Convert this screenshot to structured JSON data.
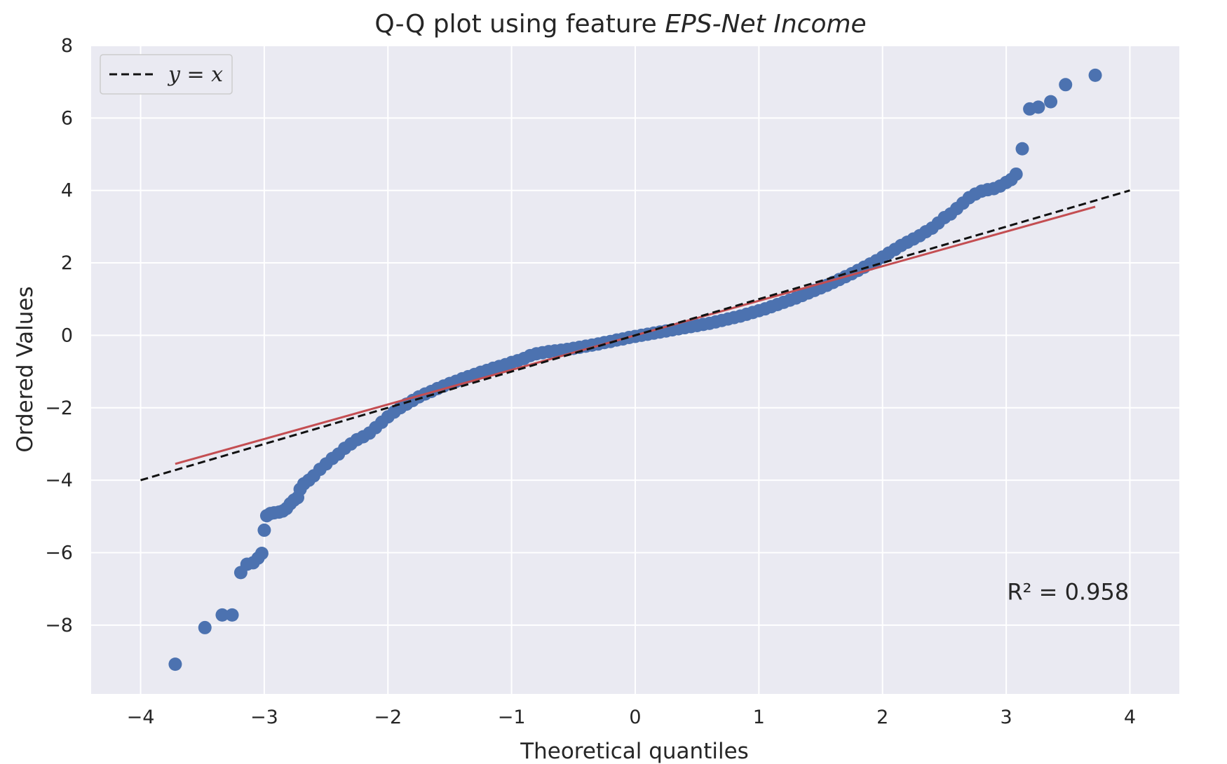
{
  "chart_data": {
    "type": "scatter",
    "title": "Q-Q plot using feature EPS-Net Income",
    "title_prefix": "Q-Q plot using feature ",
    "title_feature": "EPS-Net Income",
    "xlabel": "Theoretical quantiles",
    "ylabel": "Ordered Values",
    "xlim": [
      -4.4,
      4.4
    ],
    "ylim": [
      -9.9,
      8.0
    ],
    "xticks": [
      -4,
      -3,
      -2,
      -1,
      0,
      1,
      2,
      3,
      4
    ],
    "xtick_labels": [
      "−4",
      "−3",
      "−2",
      "−1",
      "0",
      "1",
      "2",
      "3",
      "4"
    ],
    "yticks": [
      -8,
      -6,
      -4,
      -2,
      0,
      2,
      4,
      6,
      8
    ],
    "ytick_labels": [
      "−8",
      "−6",
      "−4",
      "−2",
      "0",
      "2",
      "4",
      "6",
      "8"
    ],
    "grid": true,
    "legend": {
      "placement": "top-left",
      "entries": [
        {
          "label": "y = x",
          "style": "dashed",
          "color": "#111111"
        }
      ]
    },
    "annotation": {
      "text": "R² = 0.958",
      "x": 3.5,
      "y": -7.3
    },
    "colors": {
      "points": "#4c72b0",
      "fit_line": "#c44e52",
      "identity_line": "#111111",
      "plot_background": "#eaeaf2",
      "grid": "#ffffff"
    },
    "fit_line": {
      "x": [
        -3.72,
        3.72
      ],
      "y": [
        -3.55,
        3.55
      ]
    },
    "identity_line": {
      "x": [
        -4,
        4
      ],
      "y": [
        -4,
        4
      ]
    },
    "series": [
      {
        "values": [
          [
            -3.72,
            -9.08
          ],
          [
            -3.48,
            -8.07
          ],
          [
            -3.34,
            -7.72
          ],
          [
            -3.26,
            -7.72
          ],
          [
            -3.19,
            -6.55
          ],
          [
            -3.14,
            -6.32
          ],
          [
            -3.09,
            -6.28
          ],
          [
            -3.05,
            -6.15
          ],
          [
            -3.02,
            -6.02
          ],
          [
            -3.0,
            -5.38
          ],
          [
            -2.98,
            -4.98
          ],
          [
            -2.95,
            -4.92
          ],
          [
            -2.92,
            -4.9
          ],
          [
            -2.88,
            -4.88
          ],
          [
            -2.85,
            -4.85
          ],
          [
            -2.82,
            -4.78
          ],
          [
            -2.79,
            -4.65
          ],
          [
            -2.76,
            -4.55
          ],
          [
            -2.73,
            -4.48
          ],
          [
            -2.71,
            -4.25
          ],
          [
            -2.68,
            -4.1
          ],
          [
            -2.64,
            -4.0
          ],
          [
            -2.6,
            -3.88
          ],
          [
            -2.55,
            -3.7
          ],
          [
            -2.5,
            -3.55
          ],
          [
            -2.45,
            -3.4
          ],
          [
            -2.4,
            -3.28
          ],
          [
            -2.35,
            -3.12
          ],
          [
            -2.3,
            -3.0
          ],
          [
            -2.25,
            -2.88
          ],
          [
            -2.2,
            -2.8
          ],
          [
            -2.15,
            -2.7
          ],
          [
            -2.1,
            -2.55
          ],
          [
            -2.05,
            -2.4
          ],
          [
            -2.0,
            -2.25
          ],
          [
            -1.95,
            -2.12
          ],
          [
            -1.9,
            -2.0
          ],
          [
            -1.85,
            -1.9
          ],
          [
            -1.8,
            -1.8
          ],
          [
            -1.75,
            -1.7
          ],
          [
            -1.7,
            -1.62
          ],
          [
            -1.65,
            -1.55
          ],
          [
            -1.6,
            -1.47
          ],
          [
            -1.55,
            -1.4
          ],
          [
            -1.5,
            -1.33
          ],
          [
            -1.45,
            -1.27
          ],
          [
            -1.4,
            -1.2
          ],
          [
            -1.35,
            -1.14
          ],
          [
            -1.3,
            -1.08
          ],
          [
            -1.25,
            -1.02
          ],
          [
            -1.2,
            -0.97
          ],
          [
            -1.15,
            -0.91
          ],
          [
            -1.1,
            -0.86
          ],
          [
            -1.05,
            -0.81
          ],
          [
            -1.0,
            -0.75
          ],
          [
            -0.95,
            -0.7
          ],
          [
            -0.9,
            -0.64
          ],
          [
            -0.85,
            -0.56
          ],
          [
            -0.8,
            -0.51
          ],
          [
            -0.75,
            -0.48
          ],
          [
            -0.7,
            -0.45
          ],
          [
            -0.65,
            -0.43
          ],
          [
            -0.6,
            -0.41
          ],
          [
            -0.55,
            -0.39
          ],
          [
            -0.5,
            -0.36
          ],
          [
            -0.45,
            -0.33
          ],
          [
            -0.4,
            -0.3
          ],
          [
            -0.35,
            -0.27
          ],
          [
            -0.3,
            -0.24
          ],
          [
            -0.25,
            -0.2
          ],
          [
            -0.2,
            -0.17
          ],
          [
            -0.15,
            -0.13
          ],
          [
            -0.1,
            -0.1
          ],
          [
            -0.05,
            -0.06
          ],
          [
            0.0,
            -0.03
          ],
          [
            0.05,
            0.0
          ],
          [
            0.1,
            0.03
          ],
          [
            0.15,
            0.06
          ],
          [
            0.2,
            0.09
          ],
          [
            0.25,
            0.12
          ],
          [
            0.3,
            0.15
          ],
          [
            0.35,
            0.18
          ],
          [
            0.4,
            0.21
          ],
          [
            0.45,
            0.24
          ],
          [
            0.5,
            0.27
          ],
          [
            0.55,
            0.3
          ],
          [
            0.6,
            0.33
          ],
          [
            0.65,
            0.37
          ],
          [
            0.7,
            0.41
          ],
          [
            0.75,
            0.45
          ],
          [
            0.8,
            0.49
          ],
          [
            0.85,
            0.53
          ],
          [
            0.9,
            0.58
          ],
          [
            0.95,
            0.63
          ],
          [
            1.0,
            0.68
          ],
          [
            1.05,
            0.73
          ],
          [
            1.1,
            0.79
          ],
          [
            1.15,
            0.85
          ],
          [
            1.2,
            0.91
          ],
          [
            1.25,
            0.97
          ],
          [
            1.3,
            1.03
          ],
          [
            1.35,
            1.1
          ],
          [
            1.4,
            1.17
          ],
          [
            1.45,
            1.24
          ],
          [
            1.5,
            1.31
          ],
          [
            1.55,
            1.38
          ],
          [
            1.6,
            1.46
          ],
          [
            1.65,
            1.54
          ],
          [
            1.7,
            1.62
          ],
          [
            1.75,
            1.7
          ],
          [
            1.8,
            1.79
          ],
          [
            1.85,
            1.88
          ],
          [
            1.9,
            1.97
          ],
          [
            1.95,
            2.06
          ],
          [
            2.0,
            2.16
          ],
          [
            2.05,
            2.27
          ],
          [
            2.1,
            2.37
          ],
          [
            2.15,
            2.48
          ],
          [
            2.2,
            2.57
          ],
          [
            2.25,
            2.66
          ],
          [
            2.3,
            2.75
          ],
          [
            2.35,
            2.86
          ],
          [
            2.4,
            2.96
          ],
          [
            2.45,
            3.1
          ],
          [
            2.5,
            3.25
          ],
          [
            2.55,
            3.35
          ],
          [
            2.6,
            3.5
          ],
          [
            2.65,
            3.65
          ],
          [
            2.7,
            3.8
          ],
          [
            2.75,
            3.9
          ],
          [
            2.8,
            3.98
          ],
          [
            2.85,
            4.02
          ],
          [
            2.9,
            4.05
          ],
          [
            2.95,
            4.12
          ],
          [
            3.0,
            4.22
          ],
          [
            3.04,
            4.3
          ],
          [
            3.08,
            4.45
          ],
          [
            3.13,
            5.15
          ],
          [
            3.19,
            6.25
          ],
          [
            3.26,
            6.3
          ],
          [
            3.36,
            6.45
          ],
          [
            3.48,
            6.92
          ],
          [
            3.72,
            7.18
          ]
        ]
      }
    ]
  }
}
